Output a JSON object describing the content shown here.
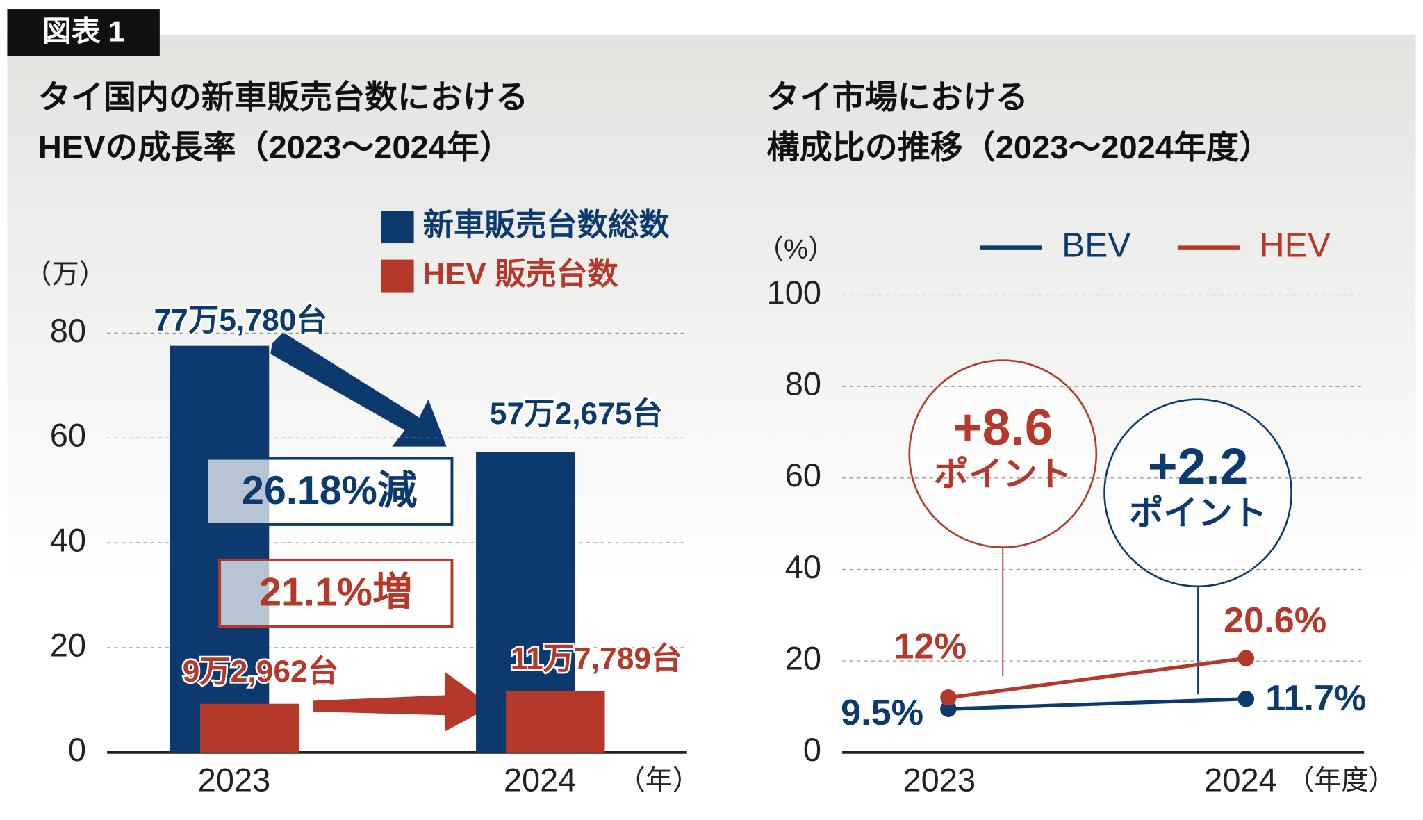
{
  "figure_label": "図表 1",
  "chart_data": [
    {
      "type": "bar",
      "title": [
        "タイ国内の新車販売台数における",
        "HEVの成長率（2023～2024年）"
      ],
      "y_label": "（万）",
      "x_label": "（年）",
      "categories": [
        "2023",
        "2024"
      ],
      "series": [
        {
          "name": "新車販売台数総数",
          "color": "#0d3a6e",
          "values": [
            77.578,
            57.2675
          ],
          "value_labels": [
            "77万5,780台",
            "57万2,675台"
          ]
        },
        {
          "name": "HEV 販売台数",
          "color": "#b5392a",
          "values": [
            9.2962,
            11.7789
          ],
          "value_labels": [
            "9万2,962台",
            "11万7,789台"
          ]
        }
      ],
      "annotations": [
        "26.18%減",
        "21.1%増"
      ],
      "ylim": [
        0,
        80
      ],
      "yticks": [
        0,
        20,
        40,
        60,
        80
      ],
      "grid": true
    },
    {
      "type": "line",
      "title": [
        "タイ市場における",
        "構成比の推移（2023～2024年度）"
      ],
      "y_label": "（%）",
      "x_label": "（年度）",
      "categories": [
        "2023",
        "2024"
      ],
      "series": [
        {
          "name": "BEV",
          "color": "#0d3a6e",
          "values": [
            9.5,
            11.7
          ],
          "value_labels": [
            "9.5%",
            "11.7%"
          ]
        },
        {
          "name": "HEV",
          "color": "#b5392a",
          "values": [
            12,
            20.6
          ],
          "value_labels": [
            "12%",
            "20.6%"
          ]
        }
      ],
      "annotations": [
        {
          "text": "+8.6",
          "sub": "ポイント"
        },
        {
          "text": "+2.2",
          "sub": "ポイント"
        }
      ],
      "ylim": [
        0,
        100
      ],
      "yticks": [
        0,
        20,
        40,
        60,
        80,
        100
      ],
      "grid": true
    }
  ]
}
